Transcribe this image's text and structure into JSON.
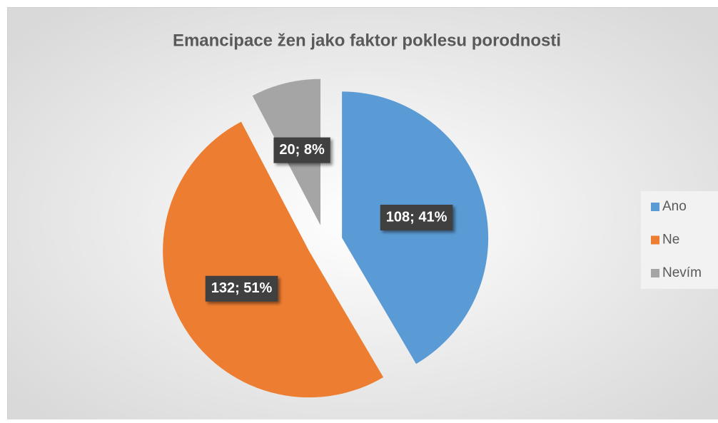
{
  "chart_data": {
    "type": "pie",
    "title": "Emancipace žen jako faktor poklesu porodnosti",
    "categories": [
      "Ano",
      "Ne",
      "Nevím"
    ],
    "values": [
      108,
      132,
      20
    ],
    "value_labels": [
      "108; 41%",
      "132; 51%",
      "20; 8%"
    ],
    "colors": [
      "#5b9bd5",
      "#ed7d31",
      "#a5a5a5"
    ],
    "legend": "right"
  }
}
